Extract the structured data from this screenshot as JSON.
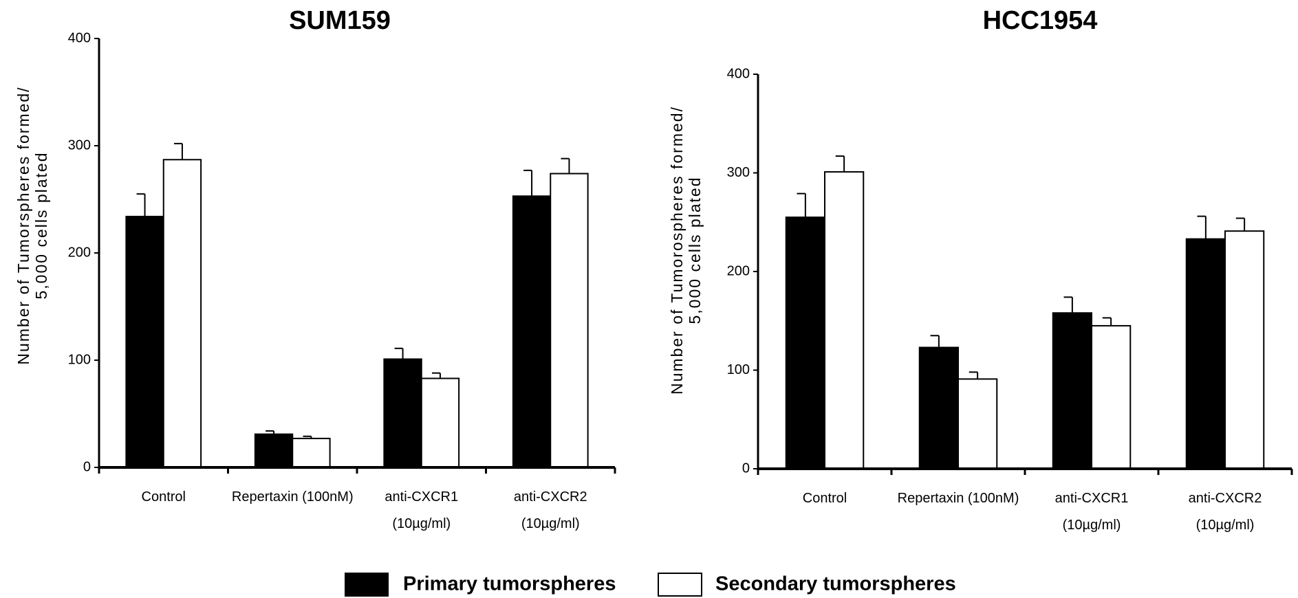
{
  "chart_data": [
    {
      "type": "bar",
      "title": "SUM159",
      "ylabel": [
        "Number of Tumorspheres formed/",
        "5,000 cells plated"
      ],
      "categories": [
        "Control",
        "Repertaxin (100nM)",
        "anti-CXCR1\n(10µg/ml)",
        "anti-CXCR2\n(10µg/ml)"
      ],
      "series": [
        {
          "name": "Primary tumorspheres",
          "color": "#000000",
          "values": [
            234,
            31,
            101,
            253
          ],
          "errors": [
            21,
            3,
            10,
            24
          ]
        },
        {
          "name": "Secondary tumorspheres",
          "color": "#ffffff",
          "values": [
            287,
            27,
            83,
            274
          ],
          "errors": [
            15,
            2,
            5,
            14
          ]
        }
      ],
      "ylim": [
        0,
        400
      ],
      "yticks": [
        0,
        100,
        200,
        300,
        400
      ]
    },
    {
      "type": "bar",
      "title": "HCC1954",
      "ylabel": [
        "Number of Tumorospheres formed/",
        "5,000 cells plated"
      ],
      "categories": [
        "Control",
        "Repertaxin (100nM)",
        "anti-CXCR1\n(10µg/ml)",
        "anti-CXCR2\n(10µg/ml)"
      ],
      "series": [
        {
          "name": "Primary tumorspheres",
          "color": "#000000",
          "values": [
            255,
            123,
            158,
            233
          ],
          "errors": [
            24,
            12,
            16,
            23
          ]
        },
        {
          "name": "Secondary tumorspheres",
          "color": "#ffffff",
          "values": [
            301,
            91,
            145,
            241
          ],
          "errors": [
            16,
            7,
            8,
            13
          ]
        }
      ],
      "ylim": [
        0,
        400
      ],
      "yticks": [
        0,
        100,
        200,
        300,
        400
      ]
    }
  ]
}
